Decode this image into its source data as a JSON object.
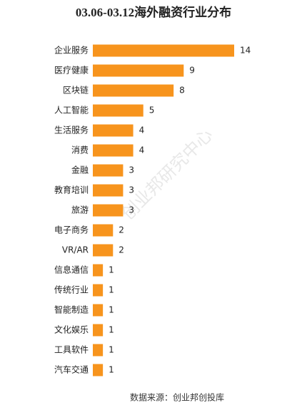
{
  "chart_data": {
    "type": "bar",
    "orientation": "horizontal",
    "title": "03.06-03.12海外融资行业分布",
    "categories": [
      "企业服务",
      "医疗健康",
      "区块链",
      "人工智能",
      "生活服务",
      "消费",
      "金融",
      "教育培训",
      "旅游",
      "电子商务",
      "VR/AR",
      "信息通信",
      "传统行业",
      "智能制造",
      "文化娱乐",
      "工具软件",
      "汽车交通"
    ],
    "values": [
      14,
      9,
      8,
      5,
      4,
      4,
      3,
      3,
      3,
      2,
      2,
      1,
      1,
      1,
      1,
      1,
      1
    ],
    "color": "#f7941d",
    "watermark": "创业邦研究中心",
    "source": "数据来源：创业邦创投库"
  }
}
